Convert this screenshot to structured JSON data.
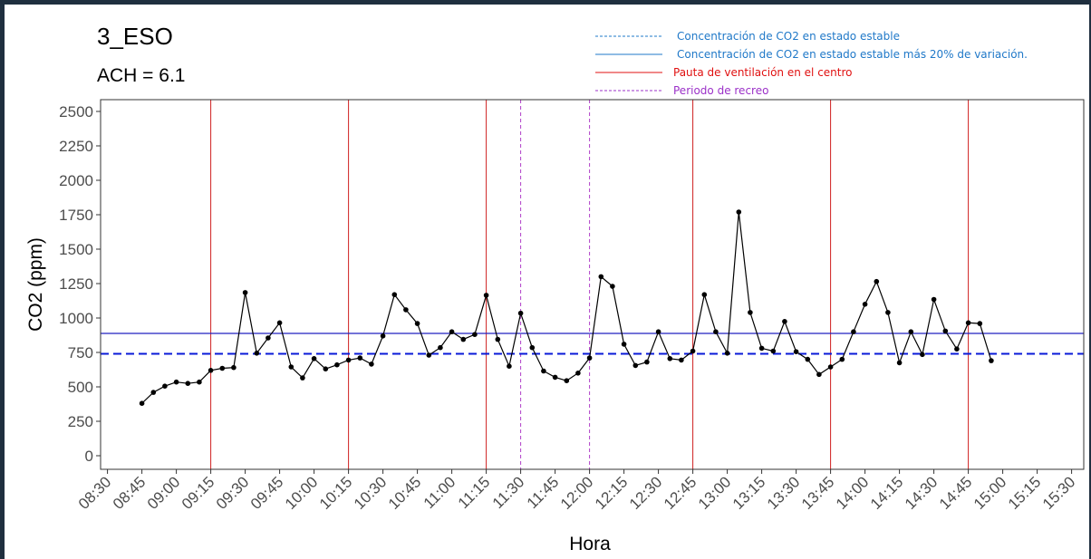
{
  "chart_data": {
    "type": "line",
    "title": "3_ESO",
    "subtitle": "ACH =  6.1",
    "xlabel": "Hora",
    "ylabel": "CO2 (ppm)",
    "ylim": [
      0,
      2500
    ],
    "yticks": [
      "0",
      "250",
      "500",
      "750",
      "1000",
      "1250",
      "1500",
      "1750",
      "2000",
      "2250",
      "2500"
    ],
    "xticks": [
      "08:30",
      "08:45",
      "09:00",
      "09:15",
      "09:30",
      "09:45",
      "10:00",
      "10:15",
      "10:30",
      "10:45",
      "11:00",
      "11:15",
      "11:30",
      "11:45",
      "12:00",
      "12:15",
      "12:30",
      "12:45",
      "13:00",
      "13:15",
      "13:30",
      "13:45",
      "14:00",
      "14:15",
      "14:30",
      "14:45",
      "15:00",
      "15:15",
      "15:30"
    ],
    "grid": false,
    "legend_position": "top-right",
    "legend": [
      {
        "label": "Concentración de CO2 en estado estable",
        "color": "#1f78c8",
        "style": "dashed"
      },
      {
        "label": "Concentración de CO2 en estado estable más 20% de variación.",
        "color": "#1f78c8",
        "style": "solid"
      },
      {
        "label": "Pauta de ventilación en el centro",
        "color": "#e01010",
        "style": "solid"
      },
      {
        "label": "Periodo de recreo",
        "color": "#9b30c8",
        "style": "dashed"
      }
    ],
    "steady_state": 740,
    "steady_state_plus_20": 888,
    "ventilation_times": [
      "09:15",
      "10:15",
      "11:15",
      "12:45",
      "13:45",
      "14:45"
    ],
    "recess_times": [
      "11:30",
      "12:00"
    ],
    "series": [
      {
        "x": [
          "08:45",
          "08:50",
          "08:55",
          "09:00",
          "09:05",
          "09:10",
          "09:15",
          "09:20",
          "09:25",
          "09:30",
          "09:35",
          "09:40",
          "09:45",
          "09:50",
          "09:55",
          "10:00",
          "10:05",
          "10:10",
          "10:15",
          "10:20",
          "10:25",
          "10:30",
          "10:35",
          "10:40",
          "10:45",
          "10:50",
          "10:55",
          "11:00",
          "11:05",
          "11:10",
          "11:15",
          "11:20",
          "11:25",
          "11:30",
          "11:35",
          "11:40",
          "11:45",
          "11:50",
          "11:55",
          "12:00",
          "12:05",
          "12:10",
          "12:15",
          "12:20",
          "12:25",
          "12:30",
          "12:35",
          "12:40",
          "12:45",
          "12:50",
          "12:55",
          "13:00",
          "13:05",
          "13:10",
          "13:15",
          "13:20",
          "13:25",
          "13:30",
          "13:35",
          "13:40",
          "13:45",
          "13:50",
          "13:55",
          "14:00",
          "14:05",
          "14:10",
          "14:15",
          "14:20",
          "14:25",
          "14:30",
          "14:35",
          "14:40",
          "14:45",
          "14:50",
          "14:55"
        ],
        "values": [
          380,
          460,
          505,
          535,
          525,
          535,
          620,
          635,
          640,
          1185,
          745,
          855,
          965,
          645,
          565,
          705,
          630,
          660,
          695,
          710,
          665,
          870,
          1170,
          1060,
          960,
          730,
          785,
          900,
          845,
          880,
          1165,
          845,
          650,
          1035,
          785,
          615,
          570,
          545,
          600,
          710,
          1300,
          1230,
          810,
          655,
          680,
          900,
          705,
          695,
          760,
          1170,
          900,
          745,
          1770,
          1040,
          780,
          760,
          975,
          755,
          700,
          590,
          645,
          700,
          900,
          1100,
          1265,
          1040,
          675,
          900,
          735,
          1135,
          905,
          775,
          965,
          960,
          690
        ]
      }
    ]
  }
}
